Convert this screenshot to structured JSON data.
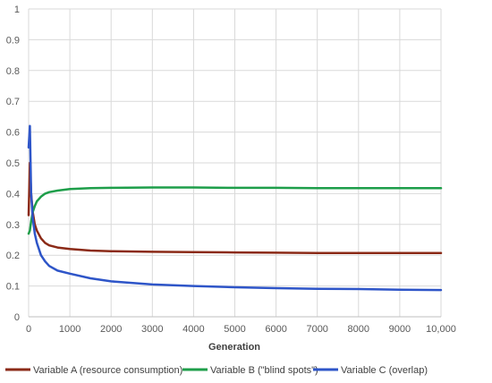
{
  "chart_data": {
    "type": "line",
    "title": "",
    "xlabel": "Generation",
    "ylabel": "",
    "xlim": [
      0,
      10000
    ],
    "ylim": [
      0,
      1
    ],
    "grid": true,
    "legend_position": "bottom",
    "x_ticks": [
      0,
      1000,
      2000,
      3000,
      4000,
      5000,
      6000,
      7000,
      8000,
      9000,
      10000
    ],
    "x_tick_labels": [
      "0",
      "1000",
      "2000",
      "3000",
      "4000",
      "5000",
      "6000",
      "7000",
      "8000",
      "9000",
      "10,000"
    ],
    "y_ticks": [
      0,
      0.1,
      0.2,
      0.3,
      0.4,
      0.5,
      0.6,
      0.7,
      0.8,
      0.9,
      1
    ],
    "y_tick_labels": [
      "0",
      "0.1",
      "0.2",
      "0.3",
      "0.4",
      "0.5",
      "0.6",
      "0.7",
      "0.8",
      "0.9",
      "1"
    ],
    "series": [
      {
        "name": "Variable A (resource consumption)",
        "color": "#8B2A17",
        "x": [
          0,
          30,
          60,
          100,
          150,
          200,
          300,
          400,
          500,
          700,
          1000,
          1500,
          2000,
          3000,
          4000,
          5000,
          6000,
          7000,
          8000,
          9000,
          10000
        ],
        "y": [
          0.33,
          0.5,
          0.4,
          0.34,
          0.3,
          0.28,
          0.255,
          0.24,
          0.232,
          0.225,
          0.22,
          0.215,
          0.213,
          0.211,
          0.21,
          0.209,
          0.208,
          0.207,
          0.207,
          0.207,
          0.207
        ]
      },
      {
        "name": "Variable B (\"blind spots\")",
        "color": "#1E9E4A",
        "x": [
          0,
          30,
          60,
          100,
          150,
          200,
          300,
          400,
          500,
          700,
          1000,
          1500,
          2000,
          3000,
          4000,
          5000,
          6000,
          7000,
          8000,
          9000,
          10000
        ],
        "y": [
          0.27,
          0.28,
          0.31,
          0.34,
          0.36,
          0.375,
          0.39,
          0.4,
          0.405,
          0.41,
          0.415,
          0.418,
          0.419,
          0.42,
          0.42,
          0.419,
          0.419,
          0.418,
          0.418,
          0.418,
          0.418
        ]
      },
      {
        "name": "Variable C (overlap)",
        "color": "#2E55C8",
        "x": [
          0,
          30,
          60,
          100,
          150,
          200,
          300,
          400,
          500,
          700,
          1000,
          1500,
          2000,
          3000,
          4000,
          5000,
          6000,
          7000,
          8000,
          9000,
          10000
        ],
        "y": [
          0.55,
          0.62,
          0.4,
          0.32,
          0.27,
          0.24,
          0.2,
          0.18,
          0.165,
          0.15,
          0.14,
          0.125,
          0.115,
          0.105,
          0.1,
          0.096,
          0.093,
          0.091,
          0.09,
          0.088,
          0.087
        ]
      }
    ]
  }
}
